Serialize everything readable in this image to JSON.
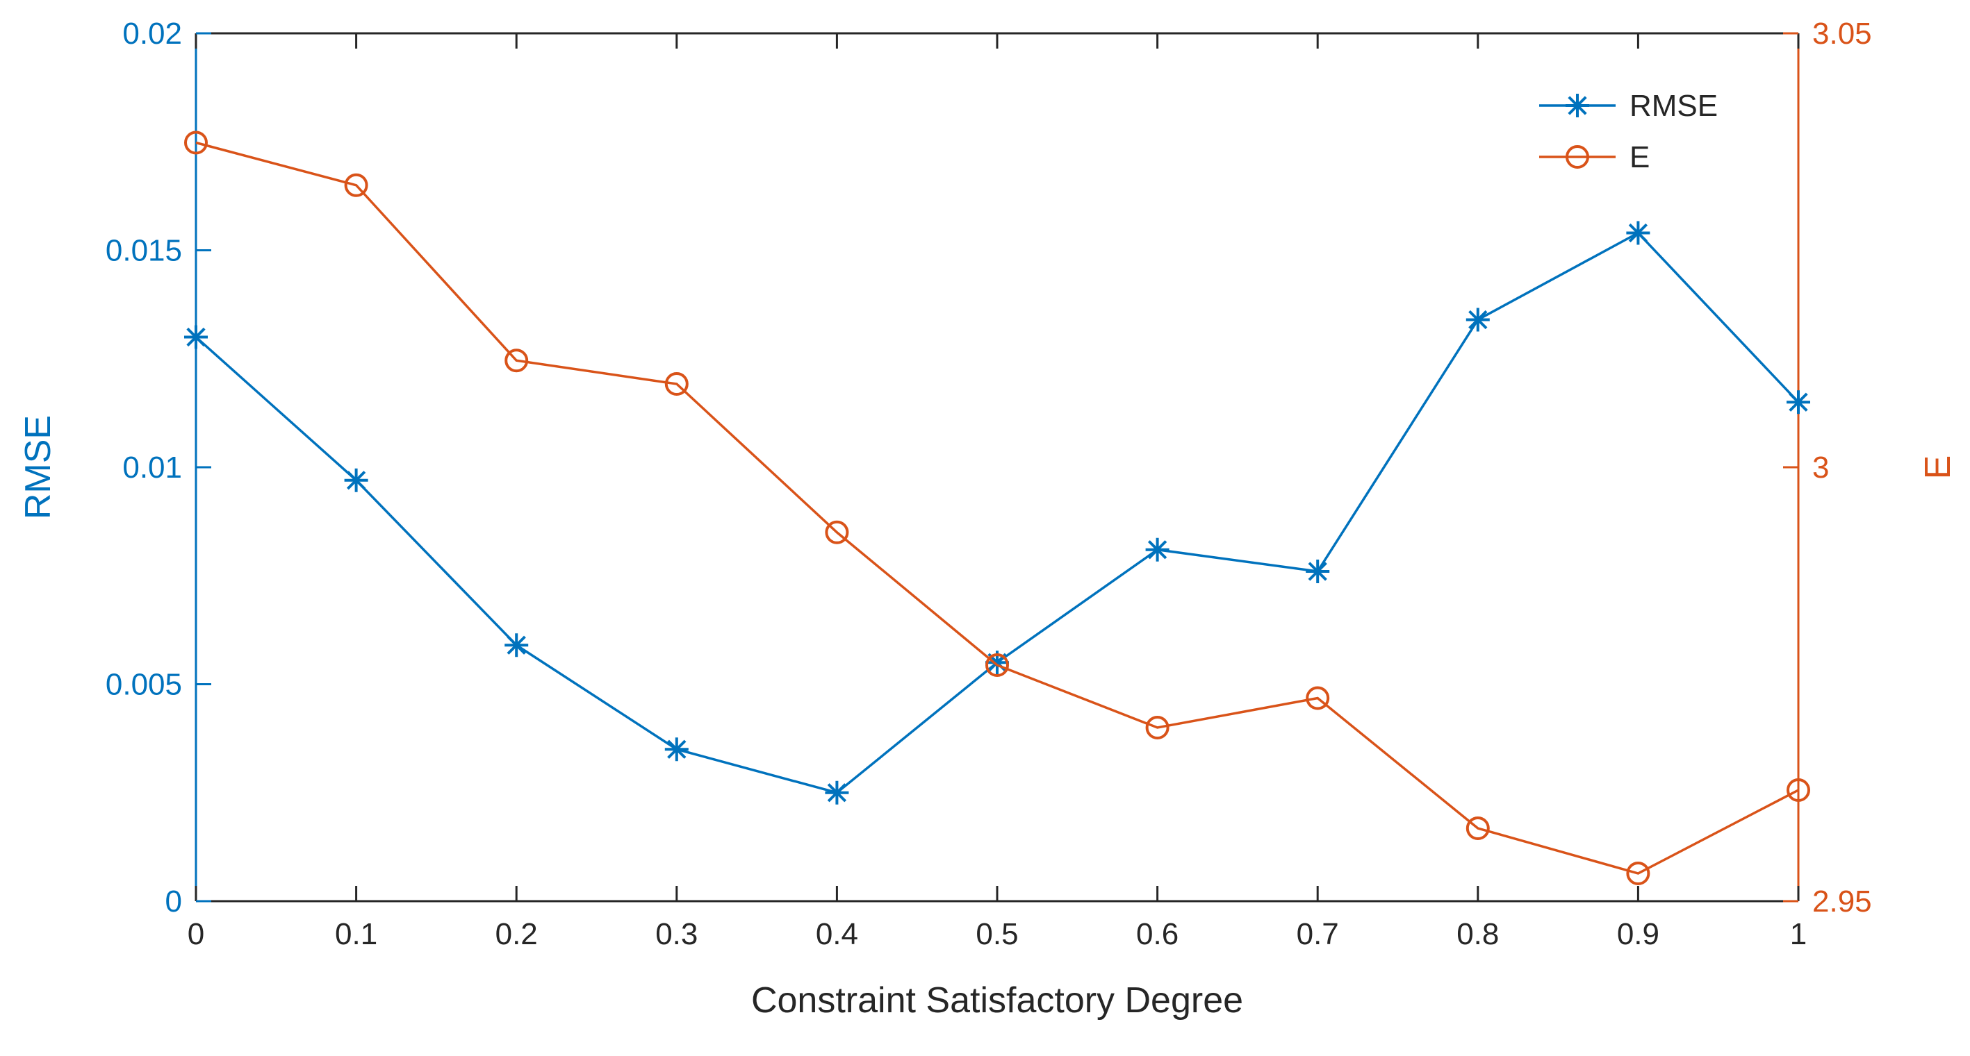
{
  "chart_data": {
    "type": "line",
    "title": "",
    "xlabel": "Constraint Satisfactory Degree",
    "ylabel_left": "RMSE",
    "ylabel_right": "E",
    "x": [
      0,
      0.1,
      0.2,
      0.3,
      0.4,
      0.5,
      0.6,
      0.7,
      0.8,
      0.9,
      1
    ],
    "xlim": [
      0,
      1
    ],
    "ylim_left": [
      0,
      0.02
    ],
    "ylim_right": [
      2.95,
      3.05
    ],
    "x_ticks": [
      "0",
      "0.1",
      "0.2",
      "0.3",
      "0.4",
      "0.5",
      "0.6",
      "0.7",
      "0.8",
      "0.9",
      "1"
    ],
    "y_ticks_left": [
      "0",
      "0.005",
      "0.01",
      "0.015",
      "0.02"
    ],
    "y_ticks_right": [
      "2.95",
      "3",
      "3.05"
    ],
    "grid": false,
    "legend_position": "top-right",
    "series": [
      {
        "name": "RMSE",
        "axis": "left",
        "color": "#0072BD",
        "marker": "asterisk",
        "values": [
          0.013,
          0.0097,
          0.0059,
          0.0035,
          0.0025,
          0.0055,
          0.0081,
          0.0076,
          0.0134,
          0.0154,
          0.0115
        ]
      },
      {
        "name": "E",
        "axis": "right",
        "color": "#D95319",
        "marker": "circle",
        "values": [
          3.0374,
          3.0325,
          3.0123,
          3.0096,
          2.9925,
          2.9772,
          2.97,
          2.9734,
          2.9584,
          2.9532,
          2.9628
        ]
      }
    ]
  },
  "colors": {
    "left_axis": "#0072BD",
    "right_axis": "#D95319",
    "axis": "#262626",
    "background": "#ffffff"
  }
}
